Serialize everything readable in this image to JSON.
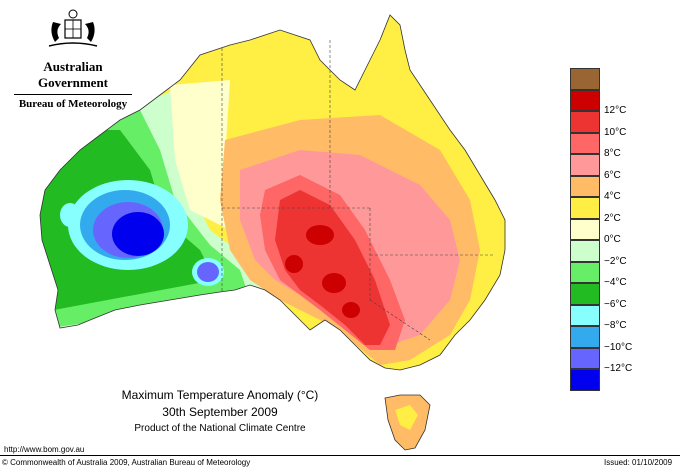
{
  "header": {
    "agency": "Australian Government",
    "bureau": "Bureau of Meteorology"
  },
  "map": {
    "title": "Maximum Temperature Anomaly (°C)",
    "date": "30th September 2009",
    "product": "Product of the National Climate Centre"
  },
  "legend": {
    "items": [
      {
        "label": "",
        "color": "#996633"
      },
      {
        "label": "12°C",
        "color": "#cc0000"
      },
      {
        "label": "10°C",
        "color": "#ee3333"
      },
      {
        "label": "8°C",
        "color": "#ff6666"
      },
      {
        "label": "6°C",
        "color": "#ff9999"
      },
      {
        "label": "4°C",
        "color": "#ffbb66"
      },
      {
        "label": "2°C",
        "color": "#ffee44"
      },
      {
        "label": "0°C",
        "color": "#ffffcc"
      },
      {
        "label": "−2°C",
        "color": "#ccffcc"
      },
      {
        "label": "−4°C",
        "color": "#66ee66"
      },
      {
        "label": "−6°C",
        "color": "#22bb22"
      },
      {
        "label": "−8°C",
        "color": "#88ffff"
      },
      {
        "label": "−10°C",
        "color": "#33aaee"
      },
      {
        "label": "−12°C",
        "color": "#6666ff"
      },
      {
        "label": "",
        "color": "#0000ee"
      }
    ]
  },
  "footer": {
    "url": "http://www.bom.gov.au",
    "copyright": "© Commonwealth of Australia 2009, Australian Bureau of Meteorology",
    "issued": "Issued: 01/10/2009"
  }
}
